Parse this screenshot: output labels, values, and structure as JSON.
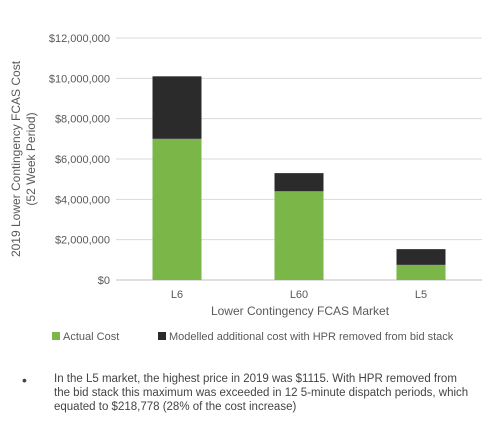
{
  "chart_data": {
    "type": "bar",
    "stacked": true,
    "categories": [
      "L6",
      "L60",
      "L5"
    ],
    "series": [
      {
        "name": "Actual Cost",
        "color": "#7ab648",
        "values": [
          7000000,
          4400000,
          750000
        ]
      },
      {
        "name": "Modelled additional cost with HPR removed from bid stack",
        "color": "#2b2b2b",
        "values": [
          3100000,
          900000,
          780000
        ]
      }
    ],
    "ylim": [
      0,
      12000000
    ],
    "yticks": [
      "$0",
      "$2,000,000",
      "$4,000,000",
      "$6,000,000",
      "$8,000,000",
      "$10,000,000",
      "$12,000,000"
    ],
    "ylabel_line1": "2019 Lower Contingency  FCAS Cost",
    "ylabel_line2": "(52 Week Period)",
    "xlabel": "Lower  Contingency  FCAS Market",
    "grid": true,
    "legend_position": "bottom"
  },
  "note": {
    "bullet": "•",
    "text": "In the L5 market, the highest price in 2019 was $1115. With HPR removed from the bid stack this maximum was exceeded in 12 5-minute dispatch periods, which equated to $218,778 (28% of the cost increase)"
  }
}
